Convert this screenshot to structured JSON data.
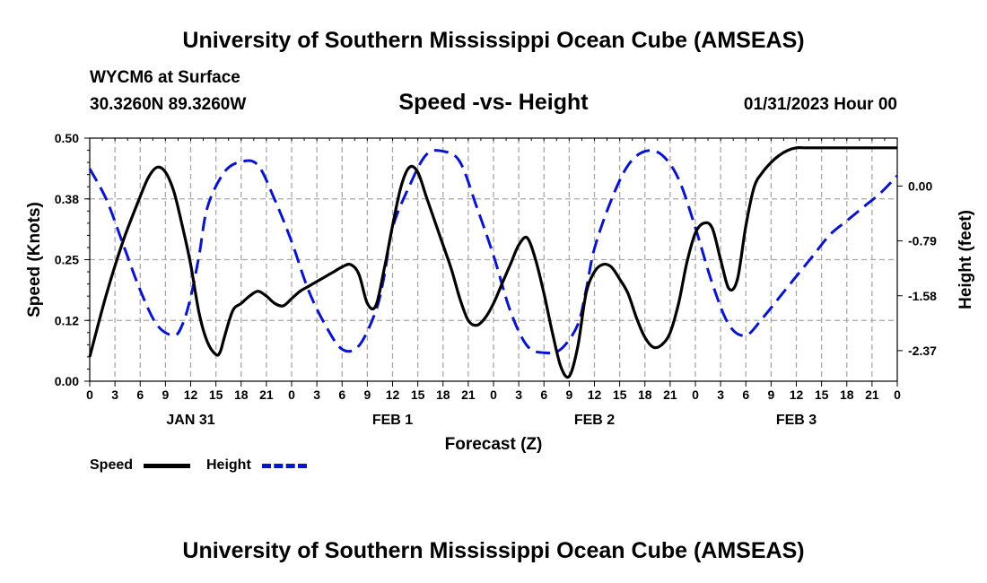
{
  "chart_data": {
    "type": "line",
    "title": "University of Southern Mississippi Ocean Cube (AMSEAS)",
    "station": "WYCM6 at Surface",
    "coords": "30.3260N  89.3260W",
    "subtitle": "Speed -vs- Height",
    "datetime": "01/31/2023 Hour 00",
    "xlabel": "Forecast (Z)",
    "ylabel_left": "Speed (Knots)",
    "ylabel_right": "Height (feet)",
    "x_ticks": [
      "0",
      "3",
      "6",
      "9",
      "12",
      "15",
      "18",
      "21",
      "0",
      "3",
      "6",
      "9",
      "12",
      "15",
      "18",
      "21",
      "0",
      "3",
      "6",
      "9",
      "12",
      "15",
      "18",
      "21",
      "0",
      "3",
      "6",
      "9",
      "12",
      "15",
      "18",
      "21",
      "0"
    ],
    "day_labels": [
      {
        "label": "JAN 31",
        "hour": 12
      },
      {
        "label": "FEB 1",
        "hour": 36
      },
      {
        "label": "FEB 2",
        "hour": 60
      },
      {
        "label": "FEB 3",
        "hour": 84
      }
    ],
    "xlim": [
      0,
      96
    ],
    "ylim_left": [
      0,
      0.5
    ],
    "left_ticks": [
      "0.00",
      "0.12",
      "0.25",
      "0.38",
      "0.50"
    ],
    "left_tick_values": [
      0,
      0.125,
      0.25,
      0.375,
      0.5
    ],
    "ylim_right": [
      -2.81,
      0.69
    ],
    "right_ticks": [
      "0.00",
      "-0.79",
      "-1.58",
      "-2.37"
    ],
    "right_tick_values": [
      0,
      -0.79,
      -1.58,
      -2.37
    ],
    "series": [
      {
        "name": "Speed",
        "axis": "left",
        "color": "#000000",
        "style": "solid",
        "x": [
          0,
          2,
          4,
          6,
          7,
          8,
          9,
          10,
          11,
          12,
          13,
          14,
          15,
          15.5,
          16,
          17,
          18,
          19,
          20,
          21,
          22,
          23,
          24,
          25,
          26,
          27,
          28,
          29,
          30,
          31,
          32,
          33,
          34,
          35,
          36,
          37,
          38,
          39,
          40,
          41,
          42,
          43,
          44,
          45,
          46,
          47,
          48,
          49,
          50,
          51,
          52,
          53,
          54,
          55,
          56,
          57,
          58,
          59,
          60,
          61,
          62,
          63,
          64,
          65,
          66,
          67,
          68,
          69,
          70,
          71,
          72,
          73,
          74,
          75,
          76,
          77,
          78,
          79,
          80,
          81,
          82,
          83,
          84,
          85,
          86,
          87,
          88,
          89,
          90,
          91,
          92,
          93,
          94,
          95,
          96
        ],
        "values": [
          0.05,
          0.18,
          0.29,
          0.38,
          0.42,
          0.44,
          0.43,
          0.39,
          0.32,
          0.24,
          0.14,
          0.08,
          0.055,
          0.06,
          0.09,
          0.145,
          0.16,
          0.175,
          0.185,
          0.175,
          0.16,
          0.155,
          0.17,
          0.185,
          0.195,
          0.205,
          0.215,
          0.225,
          0.235,
          0.24,
          0.22,
          0.16,
          0.155,
          0.23,
          0.32,
          0.4,
          0.44,
          0.43,
          0.38,
          0.33,
          0.28,
          0.23,
          0.17,
          0.125,
          0.115,
          0.13,
          0.16,
          0.2,
          0.24,
          0.28,
          0.295,
          0.25,
          0.18,
          0.1,
          0.03,
          0.01,
          0.07,
          0.18,
          0.225,
          0.24,
          0.235,
          0.21,
          0.18,
          0.13,
          0.09,
          0.07,
          0.075,
          0.1,
          0.16,
          0.245,
          0.305,
          0.325,
          0.315,
          0.25,
          0.19,
          0.21,
          0.32,
          0.4,
          0.43,
          0.45,
          0.465,
          0.475,
          0.48,
          0.48,
          0.48,
          0.48,
          0.48,
          0.48,
          0.48,
          0.48,
          0.48,
          0.48,
          0.48,
          0.48,
          0.48
        ]
      },
      {
        "name": "Height",
        "axis": "right",
        "color": "#0a14c8",
        "style": "dashed",
        "x": [
          0,
          2,
          4,
          6,
          8,
          10,
          11,
          12,
          13,
          14,
          16,
          18,
          20,
          22,
          24,
          26,
          28,
          30,
          32,
          34,
          35,
          36,
          38,
          40,
          42,
          44,
          46,
          48,
          50,
          52,
          54,
          56,
          58,
          59,
          60,
          62,
          64,
          66,
          68,
          70,
          72,
          74,
          76,
          78,
          80,
          82,
          84,
          86,
          88,
          90,
          92,
          94,
          96
        ],
        "values": [
          0.25,
          -0.2,
          -0.85,
          -1.5,
          -2.0,
          -2.15,
          -2.0,
          -1.6,
          -1.0,
          -0.3,
          0.2,
          0.35,
          0.3,
          -0.2,
          -0.8,
          -1.5,
          -2.0,
          -2.35,
          -2.3,
          -1.8,
          -1.3,
          -0.6,
          0.0,
          0.45,
          0.5,
          0.35,
          -0.3,
          -1.0,
          -1.8,
          -2.3,
          -2.4,
          -2.35,
          -2.0,
          -1.5,
          -0.9,
          -0.2,
          0.3,
          0.5,
          0.45,
          0.1,
          -0.6,
          -1.4,
          -2.0,
          -2.15,
          -1.9,
          -1.6,
          -1.3,
          -1.0,
          -0.7,
          -0.5,
          -0.3,
          -0.1,
          0.15
        ]
      }
    ],
    "legend": [
      {
        "label": "Speed",
        "color": "#000000"
      },
      {
        "label": "Height",
        "color": "#0a14c8"
      }
    ]
  }
}
